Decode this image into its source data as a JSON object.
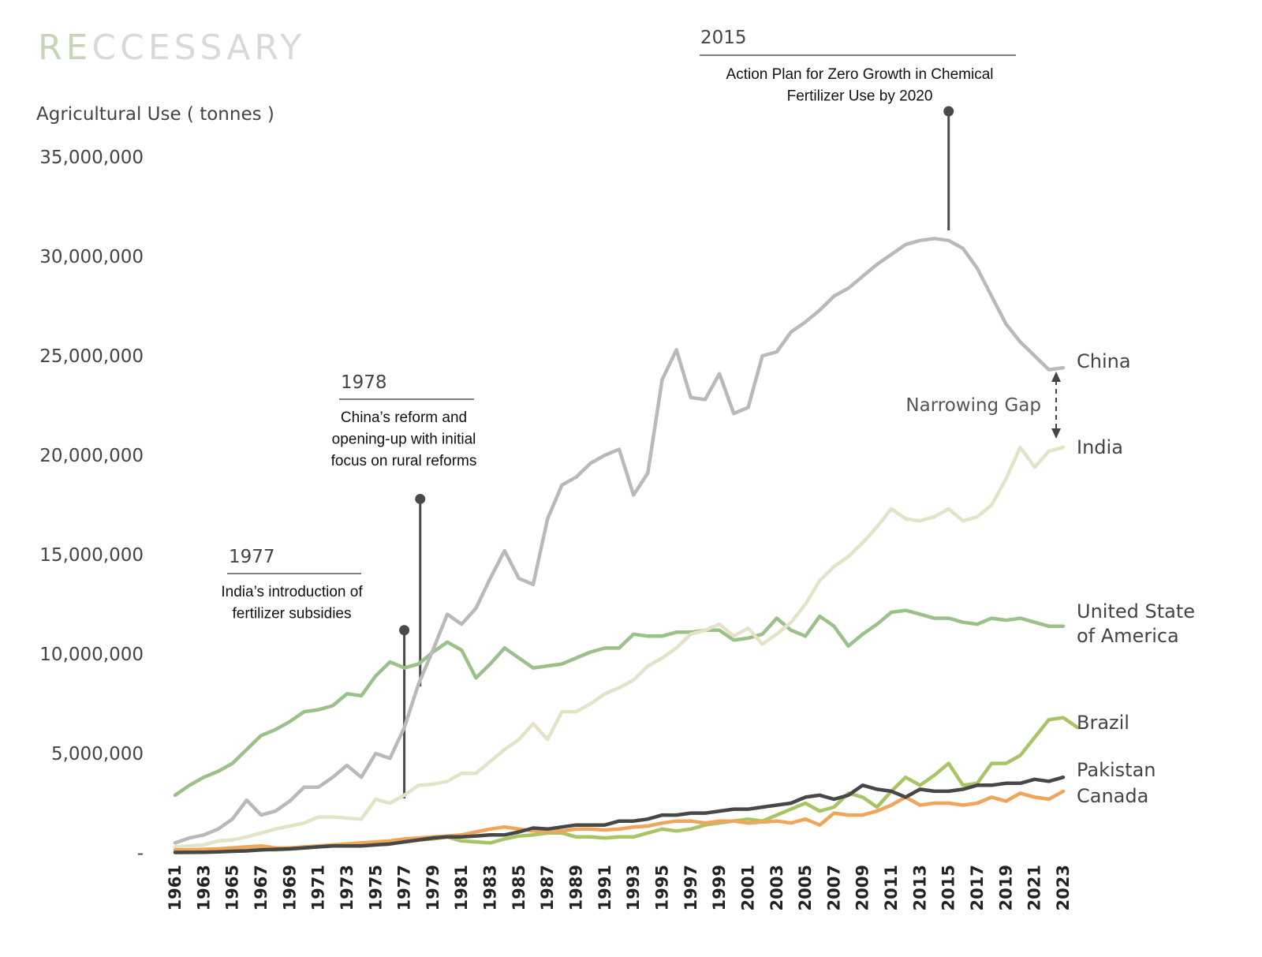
{
  "brand": {
    "name": "RECCESSARY"
  },
  "chart_data": {
    "type": "line",
    "title": "",
    "ylabel": "Agricultural Use ( tonnes )",
    "xlabel": "",
    "ylim": [
      0,
      35000000
    ],
    "yticks": [
      {
        "value": 0,
        "label": "-"
      },
      {
        "value": 5000000,
        "label": "5,000,000"
      },
      {
        "value": 10000000,
        "label": "10,000,000"
      },
      {
        "value": 15000000,
        "label": "15,000,000"
      },
      {
        "value": 20000000,
        "label": "20,000,000"
      },
      {
        "value": 25000000,
        "label": "25,000,000"
      },
      {
        "value": 30000000,
        "label": "30,000,000"
      },
      {
        "value": 35000000,
        "label": "35,000,000"
      }
    ],
    "xtick_labels": [
      "1961",
      "1963",
      "1965",
      "1967",
      "1969",
      "1971",
      "1973",
      "1975",
      "1977",
      "1979",
      "1981",
      "1983",
      "1985",
      "1987",
      "1989",
      "1991",
      "1993",
      "1995",
      "1997",
      "1999",
      "2001",
      "2003",
      "2005",
      "2007",
      "2009",
      "2011",
      "2013",
      "2015",
      "2017",
      "2019",
      "2021",
      "2023"
    ],
    "x_start": 1961,
    "x_end": 2023,
    "grid": false,
    "legend": "labels at line ends",
    "series": [
      {
        "name": "China",
        "color": "#b9b9b9",
        "label_lines": [
          "China"
        ],
        "values": [
          500000,
          750000,
          900000,
          1200000,
          1700000,
          2650000,
          1900000,
          2100000,
          2600000,
          3300000,
          3300000,
          3800000,
          4400000,
          3800000,
          5000000,
          4750000,
          6300000,
          8500000,
          10200000,
          12000000,
          11500000,
          12300000,
          13800000,
          15200000,
          13800000,
          13500000,
          16800000,
          18500000,
          18900000,
          19600000,
          20000000,
          20300000,
          18000000,
          19100000,
          23800000,
          25300000,
          22900000,
          22800000,
          24100000,
          22100000,
          22400000,
          25000000,
          25200000,
          26200000,
          26700000,
          27300000,
          28000000,
          28400000,
          29000000,
          29600000,
          30100000,
          30600000,
          30800000,
          30900000,
          30800000,
          30400000,
          29400000,
          28000000,
          26600000,
          25700000,
          25000000,
          24300000,
          24400000
        ]
      },
      {
        "name": "India",
        "color": "#e4e2c7",
        "label_lines": [
          "India"
        ],
        "values": [
          300000,
          350000,
          400000,
          600000,
          650000,
          800000,
          1000000,
          1200000,
          1350000,
          1500000,
          1800000,
          1800000,
          1750000,
          1700000,
          2700000,
          2500000,
          2900000,
          3400000,
          3450000,
          3600000,
          4000000,
          4000000,
          4600000,
          5200000,
          5700000,
          6500000,
          5700000,
          7100000,
          7100000,
          7500000,
          8000000,
          8300000,
          8700000,
          9400000,
          9800000,
          10300000,
          11000000,
          11200000,
          11500000,
          10900000,
          11300000,
          10500000,
          11000000,
          11600000,
          12500000,
          13700000,
          14400000,
          14900000,
          15600000,
          16400000,
          17300000,
          16800000,
          16700000,
          16900000,
          17300000,
          16700000,
          16900000,
          17500000,
          18800000,
          20400000,
          19400000,
          20200000,
          20400000
        ]
      },
      {
        "name": "United State of America",
        "color": "#9bc18a",
        "label_lines": [
          "United State",
          "of America"
        ],
        "values": [
          2900000,
          3400000,
          3800000,
          4100000,
          4500000,
          5200000,
          5900000,
          6200000,
          6600000,
          7100000,
          7200000,
          7400000,
          8000000,
          7900000,
          8900000,
          9600000,
          9300000,
          9500000,
          10100000,
          10600000,
          10200000,
          8800000,
          9500000,
          10300000,
          9800000,
          9300000,
          9400000,
          9500000,
          9800000,
          10100000,
          10300000,
          10300000,
          11000000,
          10900000,
          10900000,
          11100000,
          11100000,
          11200000,
          11200000,
          10700000,
          10800000,
          11000000,
          11800000,
          11200000,
          10900000,
          11900000,
          11400000,
          10400000,
          11000000,
          11500000,
          12100000,
          12200000,
          12000000,
          11800000,
          11800000,
          11600000,
          11500000,
          11800000,
          11700000,
          11800000,
          11600000,
          11400000,
          11400000
        ]
      },
      {
        "name": "Brazil",
        "color": "#a8c465",
        "label_lines": [
          "Brazil"
        ],
        "values": [
          50000,
          60000,
          80000,
          100000,
          120000,
          150000,
          180000,
          150000,
          200000,
          250000,
          300000,
          350000,
          400000,
          400000,
          500000,
          550000,
          600000,
          650000,
          700000,
          800000,
          600000,
          550000,
          500000,
          700000,
          850000,
          900000,
          1000000,
          1000000,
          800000,
          800000,
          750000,
          800000,
          800000,
          1000000,
          1200000,
          1100000,
          1200000,
          1400000,
          1500000,
          1600000,
          1700000,
          1600000,
          1900000,
          2200000,
          2500000,
          2100000,
          2300000,
          3000000,
          2800000,
          2300000,
          3100000,
          3800000,
          3400000,
          3900000,
          4500000,
          3400000,
          3500000,
          4500000,
          4500000,
          4900000,
          5800000,
          6700000,
          6800000,
          6300000
        ]
      },
      {
        "name": "Pakistan",
        "color": "#474747",
        "label_lines": [
          "Pakistan"
        ],
        "values": [
          20000,
          25000,
          30000,
          50000,
          80000,
          100000,
          150000,
          180000,
          200000,
          250000,
          300000,
          350000,
          350000,
          350000,
          400000,
          450000,
          550000,
          650000,
          750000,
          800000,
          800000,
          850000,
          900000,
          900000,
          1050000,
          1250000,
          1200000,
          1300000,
          1400000,
          1400000,
          1400000,
          1600000,
          1600000,
          1700000,
          1900000,
          1900000,
          2000000,
          2000000,
          2100000,
          2200000,
          2200000,
          2300000,
          2400000,
          2500000,
          2800000,
          2900000,
          2700000,
          2900000,
          3400000,
          3200000,
          3100000,
          2800000,
          3200000,
          3100000,
          3100000,
          3200000,
          3400000,
          3400000,
          3500000,
          3500000,
          3700000,
          3600000,
          3800000
        ]
      },
      {
        "name": "Canada",
        "color": "#efa55a",
        "label_lines": [
          "Canada"
        ],
        "values": [
          150000,
          150000,
          180000,
          200000,
          250000,
          300000,
          350000,
          250000,
          250000,
          300000,
          350000,
          400000,
          450000,
          500000,
          550000,
          600000,
          700000,
          750000,
          800000,
          850000,
          900000,
          1050000,
          1200000,
          1300000,
          1200000,
          1100000,
          1100000,
          1100000,
          1200000,
          1200000,
          1150000,
          1200000,
          1300000,
          1350000,
          1500000,
          1600000,
          1600000,
          1500000,
          1600000,
          1600000,
          1500000,
          1550000,
          1600000,
          1500000,
          1700000,
          1400000,
          2000000,
          1900000,
          1900000,
          2100000,
          2400000,
          2800000,
          2400000,
          2500000,
          2500000,
          2400000,
          2500000,
          2800000,
          2600000,
          3000000,
          2800000,
          2700000,
          3100000
        ]
      }
    ],
    "annotations": [
      {
        "year_label": "1977",
        "text_lines": [
          "India’s introduction of",
          "fertilizer subsidies"
        ],
        "x": 1977,
        "point_value": 11200000
      },
      {
        "year_label": "1978",
        "text_lines": [
          "China’s reform and",
          "opening-up with initial",
          "focus on rural reforms"
        ],
        "x": 1978,
        "point_value": 17800000
      },
      {
        "year_label": "2015",
        "text_lines": [
          "Action Plan for Zero Growth in Chemical",
          "Fertilizer Use by 2020"
        ],
        "x": 2015,
        "point_value": 37300000
      }
    ],
    "gap_annotation": {
      "text": "Narrowing Gap",
      "from_series": "China",
      "to_series": "India"
    }
  }
}
